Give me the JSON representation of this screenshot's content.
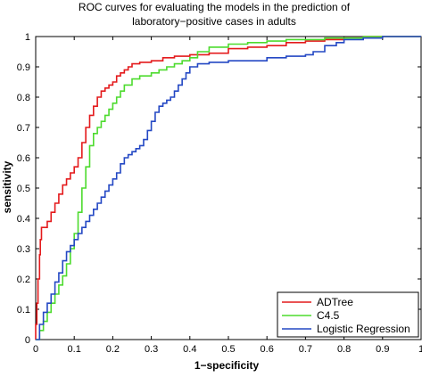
{
  "chart_data": {
    "type": "line",
    "title": "ROC curves for evaluating the models in the prediction of",
    "subtitle": "laboratory−positive cases in adults",
    "xlabel": "1−specificity",
    "ylabel": "sensitivity",
    "xlim": [
      0,
      1
    ],
    "ylim": [
      0,
      1
    ],
    "x_ticks": [
      "0",
      "0.1",
      "0.2",
      "0.3",
      "0.4",
      "0.5",
      "0.6",
      "0.7",
      "0.8",
      "0.9",
      "1"
    ],
    "y_ticks": [
      "0",
      "0.1",
      "0.2",
      "0.3",
      "0.4",
      "0.5",
      "0.6",
      "0.7",
      "0.8",
      "0.9",
      "1"
    ],
    "grid": false,
    "legend_position": "bottom-right",
    "series": [
      {
        "name": "ADTree",
        "color": "#e41a1c",
        "points": [
          [
            0,
            0
          ],
          [
            0,
            0.05
          ],
          [
            0.003,
            0.12
          ],
          [
            0.006,
            0.2
          ],
          [
            0.01,
            0.28
          ],
          [
            0.012,
            0.33
          ],
          [
            0.015,
            0.37
          ],
          [
            0.03,
            0.39
          ],
          [
            0.04,
            0.42
          ],
          [
            0.05,
            0.45
          ],
          [
            0.06,
            0.48
          ],
          [
            0.07,
            0.51
          ],
          [
            0.08,
            0.53
          ],
          [
            0.09,
            0.55
          ],
          [
            0.1,
            0.57
          ],
          [
            0.11,
            0.6
          ],
          [
            0.12,
            0.65
          ],
          [
            0.13,
            0.7
          ],
          [
            0.14,
            0.74
          ],
          [
            0.15,
            0.77
          ],
          [
            0.16,
            0.8
          ],
          [
            0.17,
            0.82
          ],
          [
            0.18,
            0.83
          ],
          [
            0.19,
            0.84
          ],
          [
            0.2,
            0.85
          ],
          [
            0.21,
            0.87
          ],
          [
            0.22,
            0.88
          ],
          [
            0.23,
            0.89
          ],
          [
            0.24,
            0.9
          ],
          [
            0.25,
            0.91
          ],
          [
            0.27,
            0.915
          ],
          [
            0.3,
            0.92
          ],
          [
            0.33,
            0.93
          ],
          [
            0.36,
            0.935
          ],
          [
            0.4,
            0.94
          ],
          [
            0.45,
            0.945
          ],
          [
            0.5,
            0.96
          ],
          [
            0.55,
            0.965
          ],
          [
            0.6,
            0.97
          ],
          [
            0.65,
            0.98
          ],
          [
            0.7,
            0.985
          ],
          [
            0.75,
            0.99
          ],
          [
            0.8,
            0.995
          ],
          [
            0.85,
            1.0
          ],
          [
            1.0,
            1.0
          ]
        ]
      },
      {
        "name": "C4.5",
        "color": "#4ddb2e",
        "points": [
          [
            0,
            0
          ],
          [
            0.01,
            0.03
          ],
          [
            0.02,
            0.06
          ],
          [
            0.03,
            0.09
          ],
          [
            0.04,
            0.12
          ],
          [
            0.05,
            0.15
          ],
          [
            0.06,
            0.18
          ],
          [
            0.07,
            0.21
          ],
          [
            0.08,
            0.25
          ],
          [
            0.09,
            0.3
          ],
          [
            0.1,
            0.35
          ],
          [
            0.11,
            0.42
          ],
          [
            0.12,
            0.5
          ],
          [
            0.13,
            0.57
          ],
          [
            0.14,
            0.64
          ],
          [
            0.15,
            0.68
          ],
          [
            0.16,
            0.7
          ],
          [
            0.17,
            0.72
          ],
          [
            0.18,
            0.74
          ],
          [
            0.19,
            0.76
          ],
          [
            0.2,
            0.78
          ],
          [
            0.21,
            0.8
          ],
          [
            0.22,
            0.82
          ],
          [
            0.23,
            0.84
          ],
          [
            0.25,
            0.86
          ],
          [
            0.27,
            0.87
          ],
          [
            0.3,
            0.88
          ],
          [
            0.32,
            0.89
          ],
          [
            0.34,
            0.9
          ],
          [
            0.36,
            0.91
          ],
          [
            0.38,
            0.92
          ],
          [
            0.4,
            0.93
          ],
          [
            0.42,
            0.95
          ],
          [
            0.45,
            0.965
          ],
          [
            0.5,
            0.975
          ],
          [
            0.55,
            0.98
          ],
          [
            0.6,
            0.985
          ],
          [
            0.65,
            0.99
          ],
          [
            0.7,
            0.99
          ],
          [
            0.75,
            0.995
          ],
          [
            0.8,
            0.995
          ],
          [
            0.85,
            1.0
          ],
          [
            1.0,
            1.0
          ]
        ]
      },
      {
        "name": "Logistic Regression",
        "color": "#2448c4",
        "points": [
          [
            0,
            0
          ],
          [
            0.01,
            0.05
          ],
          [
            0.02,
            0.09
          ],
          [
            0.03,
            0.12
          ],
          [
            0.04,
            0.15
          ],
          [
            0.05,
            0.19
          ],
          [
            0.06,
            0.22
          ],
          [
            0.07,
            0.26
          ],
          [
            0.08,
            0.29
          ],
          [
            0.09,
            0.31
          ],
          [
            0.1,
            0.33
          ],
          [
            0.11,
            0.35
          ],
          [
            0.12,
            0.37
          ],
          [
            0.13,
            0.39
          ],
          [
            0.14,
            0.41
          ],
          [
            0.15,
            0.43
          ],
          [
            0.16,
            0.45
          ],
          [
            0.17,
            0.47
          ],
          [
            0.18,
            0.49
          ],
          [
            0.19,
            0.51
          ],
          [
            0.2,
            0.53
          ],
          [
            0.21,
            0.55
          ],
          [
            0.22,
            0.58
          ],
          [
            0.23,
            0.6
          ],
          [
            0.24,
            0.61
          ],
          [
            0.25,
            0.62
          ],
          [
            0.26,
            0.63
          ],
          [
            0.27,
            0.64
          ],
          [
            0.28,
            0.66
          ],
          [
            0.29,
            0.69
          ],
          [
            0.3,
            0.72
          ],
          [
            0.31,
            0.75
          ],
          [
            0.32,
            0.77
          ],
          [
            0.33,
            0.78
          ],
          [
            0.34,
            0.79
          ],
          [
            0.35,
            0.8
          ],
          [
            0.36,
            0.82
          ],
          [
            0.37,
            0.84
          ],
          [
            0.38,
            0.86
          ],
          [
            0.39,
            0.88
          ],
          [
            0.4,
            0.9
          ],
          [
            0.42,
            0.91
          ],
          [
            0.45,
            0.915
          ],
          [
            0.5,
            0.92
          ],
          [
            0.55,
            0.92
          ],
          [
            0.6,
            0.93
          ],
          [
            0.65,
            0.935
          ],
          [
            0.7,
            0.94
          ],
          [
            0.72,
            0.95
          ],
          [
            0.75,
            0.97
          ],
          [
            0.78,
            0.98
          ],
          [
            0.8,
            0.99
          ],
          [
            0.85,
            0.995
          ],
          [
            0.9,
            1.0
          ],
          [
            1.0,
            1.0
          ]
        ]
      }
    ]
  }
}
